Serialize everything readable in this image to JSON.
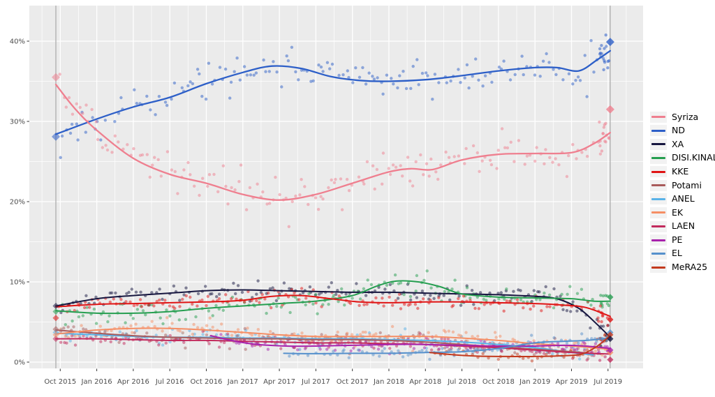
{
  "chart_data": {
    "type": "scatter",
    "title": "",
    "description": "Opinion polling scatter with smoothed trend lines, Greek parties, Sep 2015 election to Jul 2019 election",
    "panel_bg": "#EBEBEB",
    "gridline_color": "#FFFFFF",
    "election_line_color": "#A6A6A6",
    "axis_text_color": "#4D4D4D",
    "x_axis": {
      "tick_labels": [
        "Oct 2015",
        "Jan 2016",
        "Apr 2016",
        "Jul 2016",
        "Oct 2016",
        "Jan 2017",
        "Apr 2017",
        "Jul 2017",
        "Oct 2017",
        "Jan 2018",
        "Apr 2018",
        "Jul 2018",
        "Oct 2018",
        "Jan 2019",
        "Apr 2019",
        "Jul 2019"
      ],
      "tick_years": [
        2015.75,
        2016.0,
        2016.25,
        2016.5,
        2016.75,
        2017.0,
        2017.25,
        2017.5,
        2017.75,
        2018.0,
        2018.25,
        2018.5,
        2018.75,
        2019.0,
        2019.25,
        2019.5
      ]
    },
    "y_axis": {
      "tick_labels": [
        "0%",
        "10%",
        "20%",
        "30%",
        "40%"
      ],
      "tick_values": [
        0,
        10,
        20,
        30,
        40
      ],
      "minor_values": [
        5,
        15,
        25,
        35
      ],
      "range": [
        0,
        44.4
      ]
    },
    "elections": [
      {
        "name": "September 2015 election",
        "year": 2015.72
      },
      {
        "name": "July 2019 election",
        "year": 2019.515
      }
    ],
    "series": [
      {
        "name": "Syriza",
        "color": "#EF7F8F",
        "sd": 1.15,
        "per_year": 46,
        "span": [
          2015.74,
          2019.505
        ],
        "end_cluster": 12,
        "election_results": [
          35.5,
          31.5
        ],
        "trend": [
          [
            2015.72,
            34.6
          ],
          [
            2015.85,
            31.6
          ],
          [
            2016.0,
            28.9
          ],
          [
            2016.25,
            25.4
          ],
          [
            2016.5,
            23.4
          ],
          [
            2016.75,
            22.3
          ],
          [
            2017.0,
            20.9
          ],
          [
            2017.25,
            20.2
          ],
          [
            2017.5,
            20.9
          ],
          [
            2017.75,
            22.3
          ],
          [
            2018.0,
            23.7
          ],
          [
            2018.15,
            24.1
          ],
          [
            2018.3,
            24.0
          ],
          [
            2018.5,
            25.2
          ],
          [
            2018.75,
            25.9
          ],
          [
            2019.0,
            26.0
          ],
          [
            2019.25,
            26.1
          ],
          [
            2019.4,
            27.2
          ],
          [
            2019.515,
            28.6
          ]
        ]
      },
      {
        "name": "ND",
        "color": "#2D5FC8",
        "sd": 1.15,
        "per_year": 46,
        "span": [
          2015.74,
          2019.505
        ],
        "end_cluster": 13,
        "election_results": [
          28.1,
          39.9
        ],
        "trend": [
          [
            2015.72,
            28.4
          ],
          [
            2016.0,
            30.3
          ],
          [
            2016.25,
            31.8
          ],
          [
            2016.5,
            33.0
          ],
          [
            2016.75,
            34.7
          ],
          [
            2017.0,
            36.1
          ],
          [
            2017.2,
            36.9
          ],
          [
            2017.4,
            36.6
          ],
          [
            2017.6,
            35.6
          ],
          [
            2017.8,
            35.1
          ],
          [
            2018.0,
            35.0
          ],
          [
            2018.25,
            35.2
          ],
          [
            2018.5,
            35.7
          ],
          [
            2018.75,
            36.3
          ],
          [
            2019.0,
            36.7
          ],
          [
            2019.15,
            36.7
          ],
          [
            2019.3,
            36.3
          ],
          [
            2019.42,
            37.6
          ],
          [
            2019.515,
            38.8
          ]
        ]
      },
      {
        "name": "XA",
        "color": "#16163F",
        "sd": 0.6,
        "per_year": 44,
        "span": [
          2015.74,
          2019.505
        ],
        "end_cluster": 5,
        "election_results": [
          7.0,
          2.9
        ],
        "trend": [
          [
            2015.72,
            7.0
          ],
          [
            2016.0,
            7.9
          ],
          [
            2016.25,
            8.3
          ],
          [
            2016.5,
            8.6
          ],
          [
            2016.75,
            8.9
          ],
          [
            2017.0,
            9.0
          ],
          [
            2017.25,
            8.9
          ],
          [
            2017.5,
            8.8
          ],
          [
            2017.75,
            8.7
          ],
          [
            2018.0,
            8.7
          ],
          [
            2018.25,
            8.6
          ],
          [
            2018.5,
            8.5
          ],
          [
            2018.75,
            8.4
          ],
          [
            2019.0,
            8.2
          ],
          [
            2019.15,
            7.9
          ],
          [
            2019.3,
            6.7
          ],
          [
            2019.42,
            4.8
          ],
          [
            2019.515,
            3.1
          ]
        ]
      },
      {
        "name": "DISI.KINAL",
        "color": "#259E50",
        "sd": 0.7,
        "per_year": 44,
        "span": [
          2015.74,
          2019.505
        ],
        "end_cluster": 7,
        "election_results": [
          6.3,
          8.1
        ],
        "trend": [
          [
            2015.72,
            6.4
          ],
          [
            2016.0,
            6.1
          ],
          [
            2016.25,
            6.1
          ],
          [
            2016.5,
            6.3
          ],
          [
            2016.75,
            6.7
          ],
          [
            2017.0,
            7.0
          ],
          [
            2017.25,
            7.3
          ],
          [
            2017.5,
            7.6
          ],
          [
            2017.75,
            8.3
          ],
          [
            2017.92,
            9.5
          ],
          [
            2018.05,
            10.1
          ],
          [
            2018.2,
            10.0
          ],
          [
            2018.35,
            9.4
          ],
          [
            2018.5,
            8.5
          ],
          [
            2018.75,
            8.1
          ],
          [
            2019.0,
            8.0
          ],
          [
            2019.25,
            7.9
          ],
          [
            2019.4,
            7.6
          ],
          [
            2019.515,
            7.6
          ]
        ]
      },
      {
        "name": "KKE",
        "color": "#E01414",
        "sd": 0.5,
        "per_year": 44,
        "span": [
          2015.74,
          2019.505
        ],
        "end_cluster": 7,
        "election_results": [
          5.5,
          5.3
        ],
        "trend": [
          [
            2015.72,
            6.9
          ],
          [
            2016.0,
            7.2
          ],
          [
            2016.25,
            7.3
          ],
          [
            2016.5,
            7.4
          ],
          [
            2016.75,
            7.5
          ],
          [
            2017.0,
            7.7
          ],
          [
            2017.2,
            8.2
          ],
          [
            2017.4,
            8.3
          ],
          [
            2017.6,
            7.9
          ],
          [
            2017.8,
            7.5
          ],
          [
            2018.0,
            7.4
          ],
          [
            2018.25,
            7.5
          ],
          [
            2018.5,
            7.5
          ],
          [
            2018.75,
            7.4
          ],
          [
            2019.0,
            7.3
          ],
          [
            2019.2,
            7.1
          ],
          [
            2019.35,
            6.8
          ],
          [
            2019.515,
            5.7
          ]
        ]
      },
      {
        "name": "Potami",
        "color": "#A85B5B",
        "sd": 0.5,
        "per_year": 40,
        "span": [
          2015.74,
          2019.4
        ],
        "end_cluster": 0,
        "election_results": [
          4.1,
          null
        ],
        "trend": [
          [
            2015.72,
            4.0
          ],
          [
            2016.0,
            3.6
          ],
          [
            2016.25,
            3.3
          ],
          [
            2016.5,
            3.1
          ],
          [
            2016.75,
            3.0
          ],
          [
            2017.0,
            2.9
          ],
          [
            2017.25,
            2.9
          ],
          [
            2017.5,
            2.8
          ],
          [
            2017.75,
            2.8
          ],
          [
            2018.0,
            2.7
          ],
          [
            2018.25,
            2.5
          ],
          [
            2018.5,
            2.2
          ],
          [
            2018.75,
            1.9
          ],
          [
            2019.0,
            1.6
          ],
          [
            2019.25,
            1.3
          ],
          [
            2019.45,
            1.0
          ]
        ]
      },
      {
        "name": "ANEL",
        "color": "#58B2E8",
        "sd": 0.45,
        "per_year": 40,
        "span": [
          2015.74,
          2019.35
        ],
        "end_cluster": 0,
        "election_results": [
          3.7,
          null
        ],
        "trend": [
          [
            2015.72,
            3.6
          ],
          [
            2016.0,
            3.4
          ],
          [
            2016.25,
            3.2
          ],
          [
            2016.5,
            3.1
          ],
          [
            2016.75,
            3.1
          ],
          [
            2017.0,
            3.0
          ],
          [
            2017.25,
            3.0
          ],
          [
            2017.5,
            2.9
          ],
          [
            2017.75,
            2.9
          ],
          [
            2018.0,
            2.8
          ],
          [
            2018.25,
            2.7
          ],
          [
            2018.5,
            2.5
          ],
          [
            2018.75,
            2.2
          ],
          [
            2019.0,
            1.8
          ],
          [
            2019.25,
            1.2
          ],
          [
            2019.4,
            0.9
          ]
        ]
      },
      {
        "name": "EK",
        "color": "#F68E64",
        "sd": 0.5,
        "per_year": 40,
        "span": [
          2015.74,
          2019.505
        ],
        "end_cluster": 3,
        "election_results": [
          3.4,
          1.2
        ],
        "trend": [
          [
            2015.72,
            3.5
          ],
          [
            2016.0,
            4.0
          ],
          [
            2016.25,
            4.2
          ],
          [
            2016.5,
            4.2
          ],
          [
            2016.75,
            4.0
          ],
          [
            2017.0,
            3.7
          ],
          [
            2017.25,
            3.4
          ],
          [
            2017.5,
            3.2
          ],
          [
            2017.75,
            3.2
          ],
          [
            2018.0,
            3.2
          ],
          [
            2018.25,
            3.2
          ],
          [
            2018.5,
            3.0
          ],
          [
            2018.75,
            2.7
          ],
          [
            2019.0,
            2.3
          ],
          [
            2019.25,
            2.0
          ],
          [
            2019.515,
            1.6
          ]
        ]
      },
      {
        "name": "LAEN",
        "color": "#C22A5C",
        "sd": 0.45,
        "per_year": 40,
        "span": [
          2015.74,
          2019.45
        ],
        "end_cluster": 3,
        "election_results": [
          2.9,
          0.3
        ],
        "trend": [
          [
            2015.72,
            2.9
          ],
          [
            2016.0,
            2.9
          ],
          [
            2016.25,
            2.8
          ],
          [
            2016.5,
            2.7
          ],
          [
            2016.75,
            2.7
          ],
          [
            2017.0,
            2.6
          ],
          [
            2017.25,
            2.5
          ],
          [
            2017.5,
            2.4
          ],
          [
            2017.75,
            2.4
          ],
          [
            2018.0,
            2.3
          ],
          [
            2018.25,
            2.2
          ],
          [
            2018.5,
            2.0
          ],
          [
            2018.75,
            1.8
          ],
          [
            2019.0,
            1.5
          ],
          [
            2019.25,
            1.2
          ],
          [
            2019.515,
            1.0
          ]
        ]
      },
      {
        "name": "PE",
        "color": "#A822AC",
        "sd": 0.4,
        "per_year": 36,
        "span": [
          2016.8,
          2019.505
        ],
        "end_cluster": 4,
        "election_results": [
          null,
          1.5
        ],
        "trend": [
          [
            2016.78,
            3.3
          ],
          [
            2016.95,
            2.6
          ],
          [
            2017.1,
            2.2
          ],
          [
            2017.3,
            2.0
          ],
          [
            2017.5,
            2.0
          ],
          [
            2017.75,
            2.1
          ],
          [
            2018.0,
            2.2
          ],
          [
            2018.25,
            2.2
          ],
          [
            2018.5,
            2.1
          ],
          [
            2018.75,
            2.0
          ],
          [
            2019.0,
            2.0
          ],
          [
            2019.2,
            2.1
          ],
          [
            2019.35,
            2.0
          ],
          [
            2019.515,
            1.7
          ]
        ]
      },
      {
        "name": "EL",
        "color": "#5590CC",
        "sd": 0.35,
        "per_year": 36,
        "span": [
          2017.3,
          2019.505
        ],
        "end_cluster": 5,
        "election_results": [
          null,
          3.7
        ],
        "trend": [
          [
            2017.28,
            1.1
          ],
          [
            2017.5,
            1.05
          ],
          [
            2017.75,
            1.1
          ],
          [
            2018.0,
            1.1
          ],
          [
            2018.25,
            1.2
          ],
          [
            2018.5,
            1.3
          ],
          [
            2018.75,
            1.7
          ],
          [
            2019.0,
            2.4
          ],
          [
            2019.2,
            2.6
          ],
          [
            2019.35,
            2.7
          ],
          [
            2019.515,
            3.0
          ]
        ]
      },
      {
        "name": "MeRA25",
        "color": "#C33A1E",
        "sd": 0.3,
        "per_year": 32,
        "span": [
          2018.3,
          2019.505
        ],
        "end_cluster": 5,
        "election_results": [
          null,
          3.4
        ],
        "trend": [
          [
            2018.28,
            1.2
          ],
          [
            2018.45,
            0.9
          ],
          [
            2018.6,
            0.75
          ],
          [
            2018.8,
            0.7
          ],
          [
            2019.0,
            0.7
          ],
          [
            2019.2,
            0.8
          ],
          [
            2019.32,
            1.0
          ],
          [
            2019.42,
            1.9
          ],
          [
            2019.515,
            3.3
          ]
        ]
      }
    ]
  }
}
